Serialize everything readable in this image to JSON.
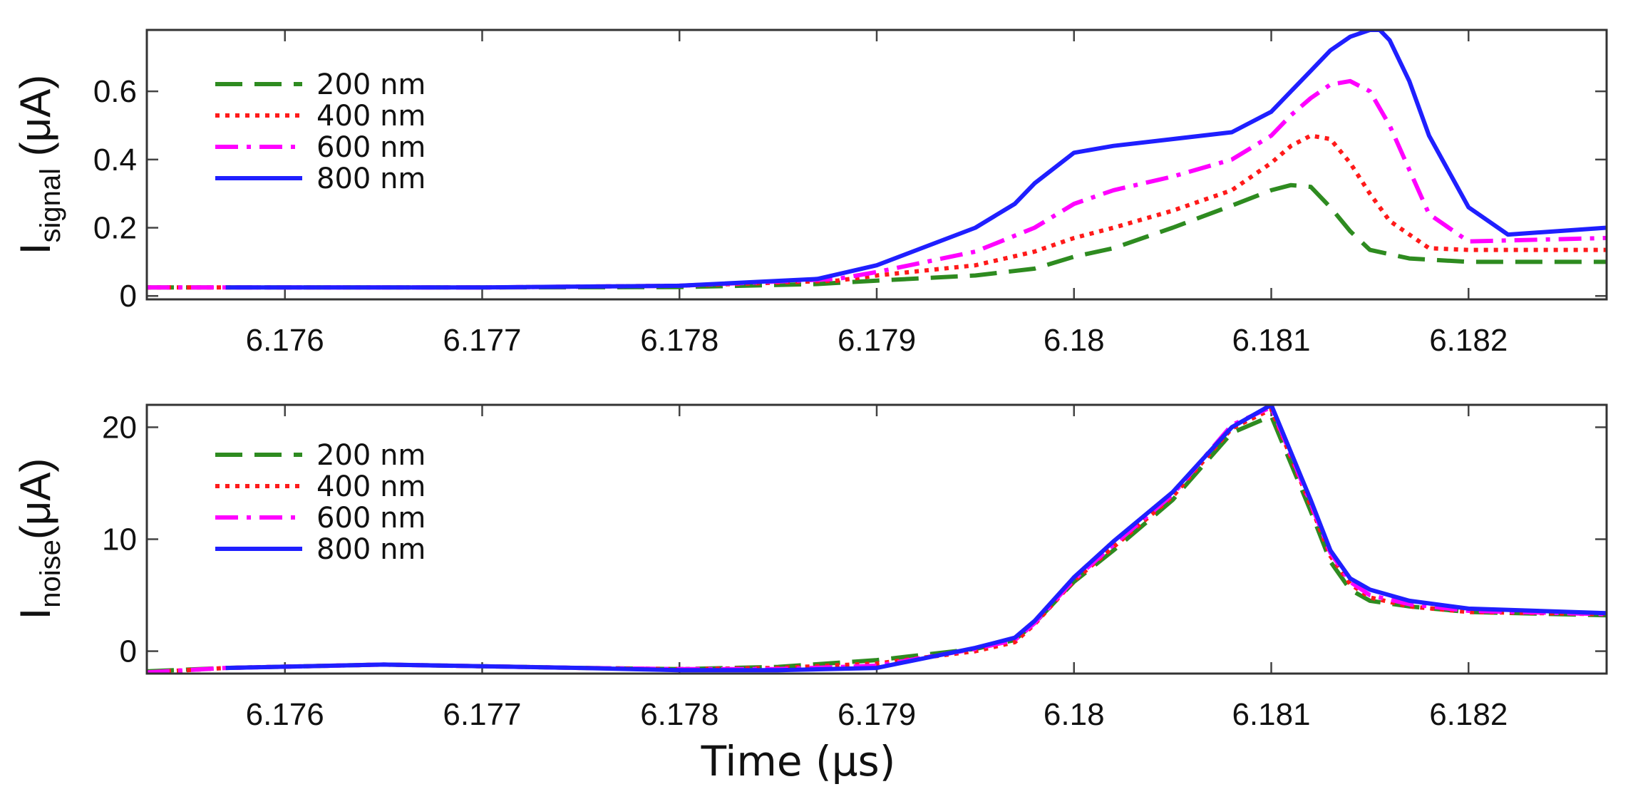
{
  "figure": {
    "xlabel": "Time (μs)"
  },
  "chart_data": [
    {
      "type": "line",
      "id": "signal",
      "ylabel_main": "I",
      "ylabel_sub": "signal",
      "ylabel_unit": " (μA)",
      "xlim": [
        6.1753,
        6.1827
      ],
      "ylim": [
        -0.01,
        0.78
      ],
      "xticks": [
        6.176,
        6.177,
        6.178,
        6.179,
        6.18,
        6.181,
        6.182
      ],
      "xtick_labels": [
        "6.176",
        "6.177",
        "6.178",
        "6.179",
        "6.18",
        "6.181",
        "6.182"
      ],
      "yticks": [
        0,
        0.2,
        0.4,
        0.6
      ],
      "ytick_labels": [
        "0",
        "0.2",
        "0.4",
        "0.6"
      ],
      "legend_position": "top-left",
      "series": [
        {
          "name": "200 nm",
          "color": "#2e8b20",
          "dash": "dashed",
          "x": [
            6.1753,
            6.1757,
            6.177,
            6.178,
            6.1787,
            6.179,
            6.1795,
            6.1798,
            6.18,
            6.1802,
            6.1805,
            6.1808,
            6.181,
            6.1811,
            6.1812,
            6.1813,
            6.1814,
            6.1815,
            6.1817,
            6.182,
            6.1827
          ],
          "y": [
            0.025,
            0.025,
            0.025,
            0.026,
            0.035,
            0.045,
            0.06,
            0.08,
            0.115,
            0.14,
            0.2,
            0.265,
            0.31,
            0.325,
            0.32,
            0.26,
            0.19,
            0.135,
            0.11,
            0.1,
            0.1
          ]
        },
        {
          "name": "400 nm",
          "color": "#ff1a1a",
          "dash": "dotted",
          "x": [
            6.1753,
            6.1757,
            6.177,
            6.178,
            6.1788,
            6.179,
            6.1795,
            6.1798,
            6.18,
            6.1802,
            6.1805,
            6.1808,
            6.181,
            6.1811,
            6.1812,
            6.1813,
            6.1814,
            6.1815,
            6.1816,
            6.1818,
            6.182,
            6.1827
          ],
          "y": [
            0.025,
            0.025,
            0.025,
            0.03,
            0.045,
            0.06,
            0.09,
            0.13,
            0.17,
            0.2,
            0.25,
            0.31,
            0.39,
            0.44,
            0.47,
            0.46,
            0.39,
            0.3,
            0.22,
            0.14,
            0.135,
            0.135
          ]
        },
        {
          "name": "600 nm",
          "color": "#ff00ff",
          "dash": "dashdot",
          "x": [
            6.1753,
            6.1757,
            6.177,
            6.178,
            6.1788,
            6.179,
            6.1795,
            6.1798,
            6.18,
            6.1802,
            6.1805,
            6.1808,
            6.181,
            6.1811,
            6.1812,
            6.1813,
            6.1814,
            6.1815,
            6.1816,
            6.1817,
            6.1818,
            6.182,
            6.1827
          ],
          "y": [
            0.025,
            0.025,
            0.025,
            0.03,
            0.05,
            0.07,
            0.13,
            0.2,
            0.27,
            0.31,
            0.35,
            0.4,
            0.47,
            0.53,
            0.58,
            0.62,
            0.63,
            0.6,
            0.5,
            0.37,
            0.24,
            0.16,
            0.17
          ]
        },
        {
          "name": "800 nm",
          "color": "#1f1fff",
          "dash": "solid",
          "x": [
            6.1757,
            6.177,
            6.178,
            6.1787,
            6.179,
            6.1795,
            6.1797,
            6.1798,
            6.18,
            6.1802,
            6.1805,
            6.1808,
            6.181,
            6.1811,
            6.1812,
            6.1813,
            6.1814,
            6.1815,
            6.18155,
            6.1816,
            6.1817,
            6.1818,
            6.182,
            6.1822,
            6.1827
          ],
          "y": [
            0.025,
            0.025,
            0.03,
            0.05,
            0.09,
            0.2,
            0.27,
            0.33,
            0.42,
            0.44,
            0.46,
            0.48,
            0.54,
            0.6,
            0.66,
            0.72,
            0.76,
            0.78,
            0.78,
            0.75,
            0.63,
            0.47,
            0.26,
            0.18,
            0.2
          ]
        }
      ]
    },
    {
      "type": "line",
      "id": "noise",
      "ylabel_main": "I",
      "ylabel_sub": "noise",
      "ylabel_unit": "(μA)",
      "xlim": [
        6.1753,
        6.1827
      ],
      "ylim": [
        -2,
        22
      ],
      "xticks": [
        6.176,
        6.177,
        6.178,
        6.179,
        6.18,
        6.181,
        6.182
      ],
      "xtick_labels": [
        "6.176",
        "6.177",
        "6.178",
        "6.179",
        "6.18",
        "6.181",
        "6.182"
      ],
      "yticks": [
        0,
        10,
        20
      ],
      "ytick_labels": [
        "0",
        "10",
        "20"
      ],
      "legend_position": "top-left",
      "series": [
        {
          "name": "200 nm",
          "color": "#2e8b20",
          "dash": "dashed",
          "x": [
            6.1753,
            6.1757,
            6.1765,
            6.1775,
            6.178,
            6.1785,
            6.179,
            6.1795,
            6.1797,
            6.1798,
            6.18,
            6.1802,
            6.1805,
            6.1808,
            6.181,
            6.1812,
            6.1813,
            6.1814,
            6.1815,
            6.1817,
            6.182,
            6.1827
          ],
          "y": [
            -1.8,
            -1.5,
            -1.2,
            -1.5,
            -1.6,
            -1.4,
            -0.8,
            0.2,
            1.0,
            2.5,
            6.2,
            9.0,
            13.5,
            19.5,
            21.0,
            12.5,
            8.0,
            5.5,
            4.5,
            4.0,
            3.5,
            3.2
          ]
        },
        {
          "name": "400 nm",
          "color": "#ff1a1a",
          "dash": "dotted",
          "x": [
            6.1753,
            6.1757,
            6.1765,
            6.1775,
            6.178,
            6.1785,
            6.179,
            6.1795,
            6.1797,
            6.1798,
            6.18,
            6.1802,
            6.1805,
            6.1808,
            6.181,
            6.1812,
            6.1813,
            6.1814,
            6.1815,
            6.1817,
            6.182,
            6.1827
          ],
          "y": [
            -1.9,
            -1.5,
            -1.2,
            -1.5,
            -1.6,
            -1.5,
            -1.1,
            0.0,
            0.8,
            2.4,
            6.3,
            9.3,
            13.8,
            19.9,
            21.6,
            13.0,
            8.5,
            6.0,
            4.8,
            4.0,
            3.5,
            3.3
          ]
        },
        {
          "name": "600 nm",
          "color": "#ff00ff",
          "dash": "dashdot",
          "x": [
            6.1753,
            6.1757,
            6.1765,
            6.1775,
            6.178,
            6.1785,
            6.179,
            6.1795,
            6.1797,
            6.1798,
            6.18,
            6.1802,
            6.1805,
            6.1808,
            6.181,
            6.1812,
            6.1813,
            6.1814,
            6.1815,
            6.1817,
            6.182,
            6.1827
          ],
          "y": [
            -1.9,
            -1.5,
            -1.2,
            -1.5,
            -1.6,
            -1.6,
            -1.3,
            0.2,
            1.0,
            2.5,
            6.4,
            9.5,
            14.0,
            20.2,
            21.8,
            13.2,
            8.8,
            6.2,
            5.0,
            4.2,
            3.6,
            3.3
          ]
        },
        {
          "name": "800 nm",
          "color": "#1f1fff",
          "dash": "solid",
          "x": [
            6.1757,
            6.1765,
            6.1775,
            6.178,
            6.1785,
            6.179,
            6.1795,
            6.1797,
            6.1798,
            6.18,
            6.1802,
            6.1805,
            6.1808,
            6.181,
            6.1812,
            6.1813,
            6.1814,
            6.1815,
            6.1817,
            6.182,
            6.1827
          ],
          "y": [
            -1.5,
            -1.2,
            -1.5,
            -1.7,
            -1.7,
            -1.5,
            0.3,
            1.2,
            2.7,
            6.6,
            9.8,
            14.2,
            20.0,
            22.0,
            13.5,
            9.0,
            6.5,
            5.5,
            4.5,
            3.8,
            3.4
          ]
        }
      ]
    }
  ]
}
